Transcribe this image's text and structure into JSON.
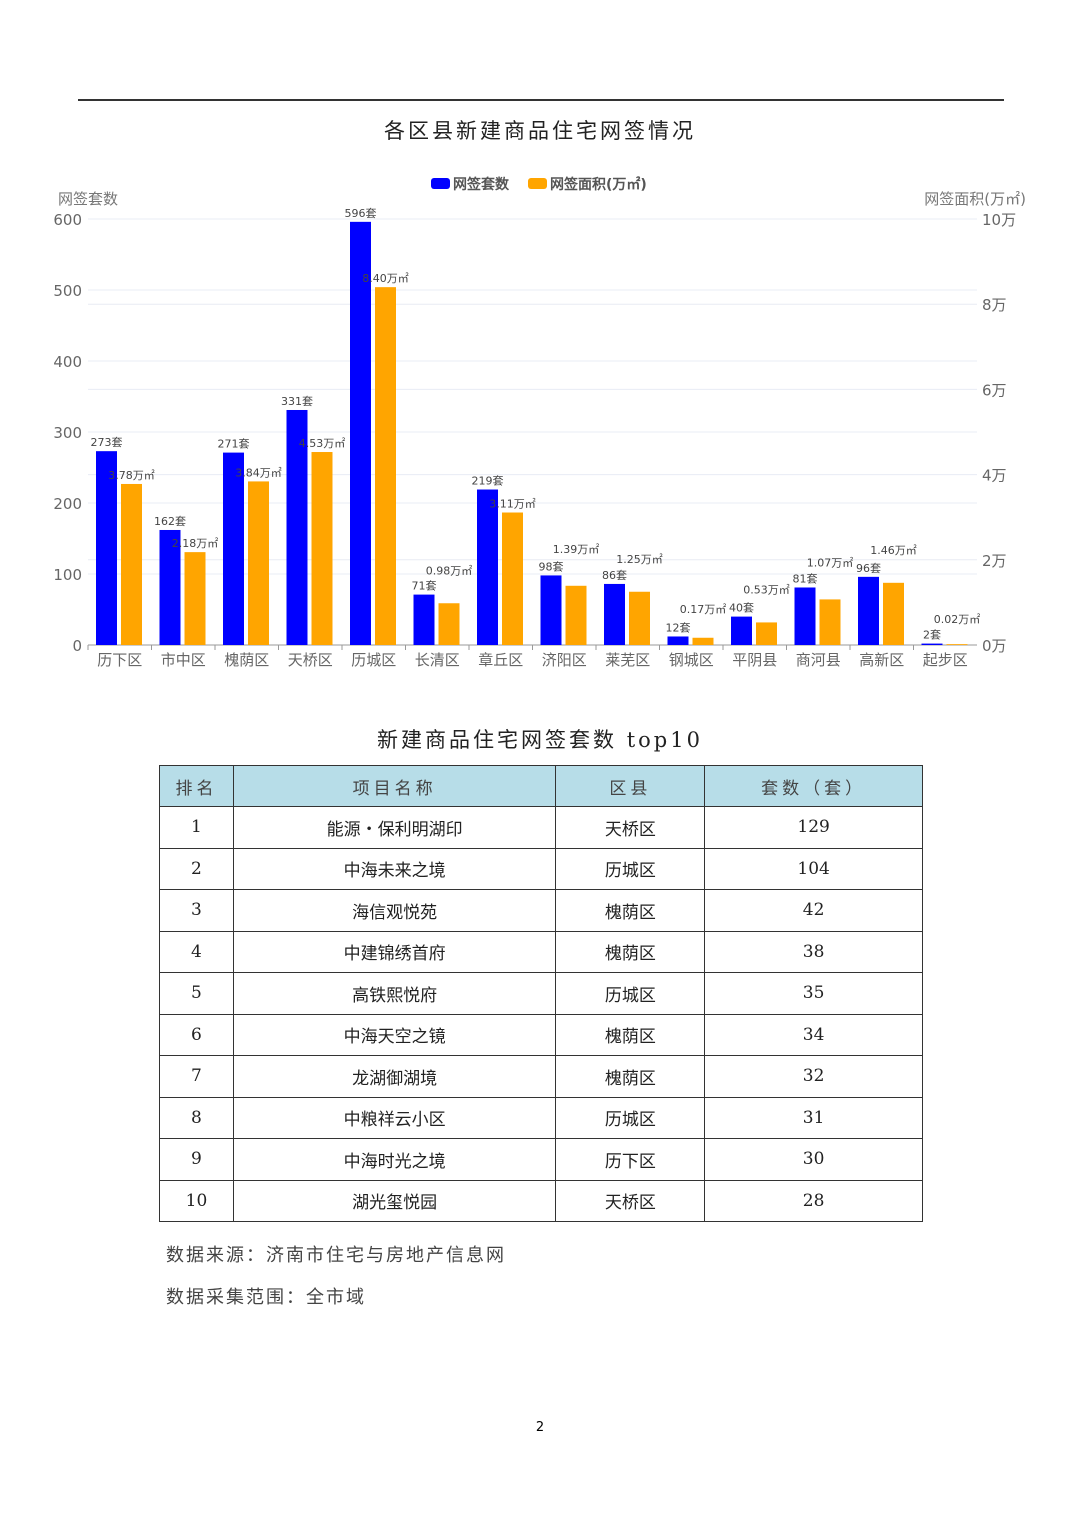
{
  "chart_title": "各区县新建商品住宅网签情况",
  "chart_data": {
    "type": "bar",
    "title": "各区县新建商品住宅网签情况",
    "legend_position": "top",
    "categories": [
      "历下区",
      "市中区",
      "槐荫区",
      "天桥区",
      "历城区",
      "长清区",
      "章丘区",
      "济阳区",
      "莱芜区",
      "钢城区",
      "平阴县",
      "商河县",
      "高新区",
      "起步区"
    ],
    "series": [
      {
        "name": "网签套数",
        "color": "#0000ff",
        "axis": "left",
        "values": [
          273,
          162,
          271,
          331,
          596,
          71,
          219,
          98,
          86,
          12,
          40,
          81,
          96,
          2
        ],
        "labels": [
          "273套",
          "162套",
          "271套",
          "331套",
          "596套",
          "71套",
          "219套",
          "98套",
          "86套",
          "12套",
          "40套",
          "81套",
          "96套",
          "2套"
        ]
      },
      {
        "name": "网签面积(万㎡)",
        "color": "#ffa500",
        "axis": "right",
        "values": [
          3.78,
          2.18,
          3.84,
          4.53,
          8.4,
          0.98,
          3.11,
          1.39,
          1.25,
          0.17,
          0.53,
          1.07,
          1.46,
          0.02
        ],
        "labels": [
          "3.78万㎡",
          "2.18万㎡",
          "3.84万㎡",
          "4.53万㎡",
          "8.40万㎡",
          "0.98万㎡",
          "3.11万㎡",
          "1.39万㎡",
          "1.25万㎡",
          "0.17万㎡",
          "0.53万㎡",
          "1.07万㎡",
          "1.46万㎡",
          "0.02万㎡"
        ]
      }
    ],
    "ylabel_left": "网签套数",
    "ylim_left": [
      0,
      600
    ],
    "yticks_left": [
      "0",
      "100",
      "200",
      "300",
      "400",
      "500",
      "600"
    ],
    "ylabel_right": "网签面积(万㎡)",
    "ylim_right": [
      0,
      10
    ],
    "yticks_right": [
      "0万",
      "2万",
      "4万",
      "6万",
      "8万",
      "10万"
    ],
    "grid": true
  },
  "table_title": "新建商品住宅网签套数 top10",
  "table": {
    "headers": [
      "排名",
      "项目名称",
      "区县",
      "套数（套）"
    ],
    "rows": [
      [
        "1",
        "能源・保利明湖印",
        "天桥区",
        "129"
      ],
      [
        "2",
        "中海未来之境",
        "历城区",
        "104"
      ],
      [
        "3",
        "海信观悦苑",
        "槐荫区",
        "42"
      ],
      [
        "4",
        "中建锦绣首府",
        "槐荫区",
        "38"
      ],
      [
        "5",
        "高铁熙悦府",
        "历城区",
        "35"
      ],
      [
        "6",
        "中海天空之镜",
        "槐荫区",
        "34"
      ],
      [
        "7",
        "龙湖御湖境",
        "槐荫区",
        "32"
      ],
      [
        "8",
        "中粮祥云小区",
        "历城区",
        "31"
      ],
      [
        "9",
        "中海时光之境",
        "历下区",
        "30"
      ],
      [
        "10",
        "湖光玺悦园",
        "天桥区",
        "28"
      ]
    ]
  },
  "notes": {
    "source": "数据来源：济南市住宅与房地产信息网",
    "scope": "数据采集范围：全市域"
  },
  "page_number": "2"
}
